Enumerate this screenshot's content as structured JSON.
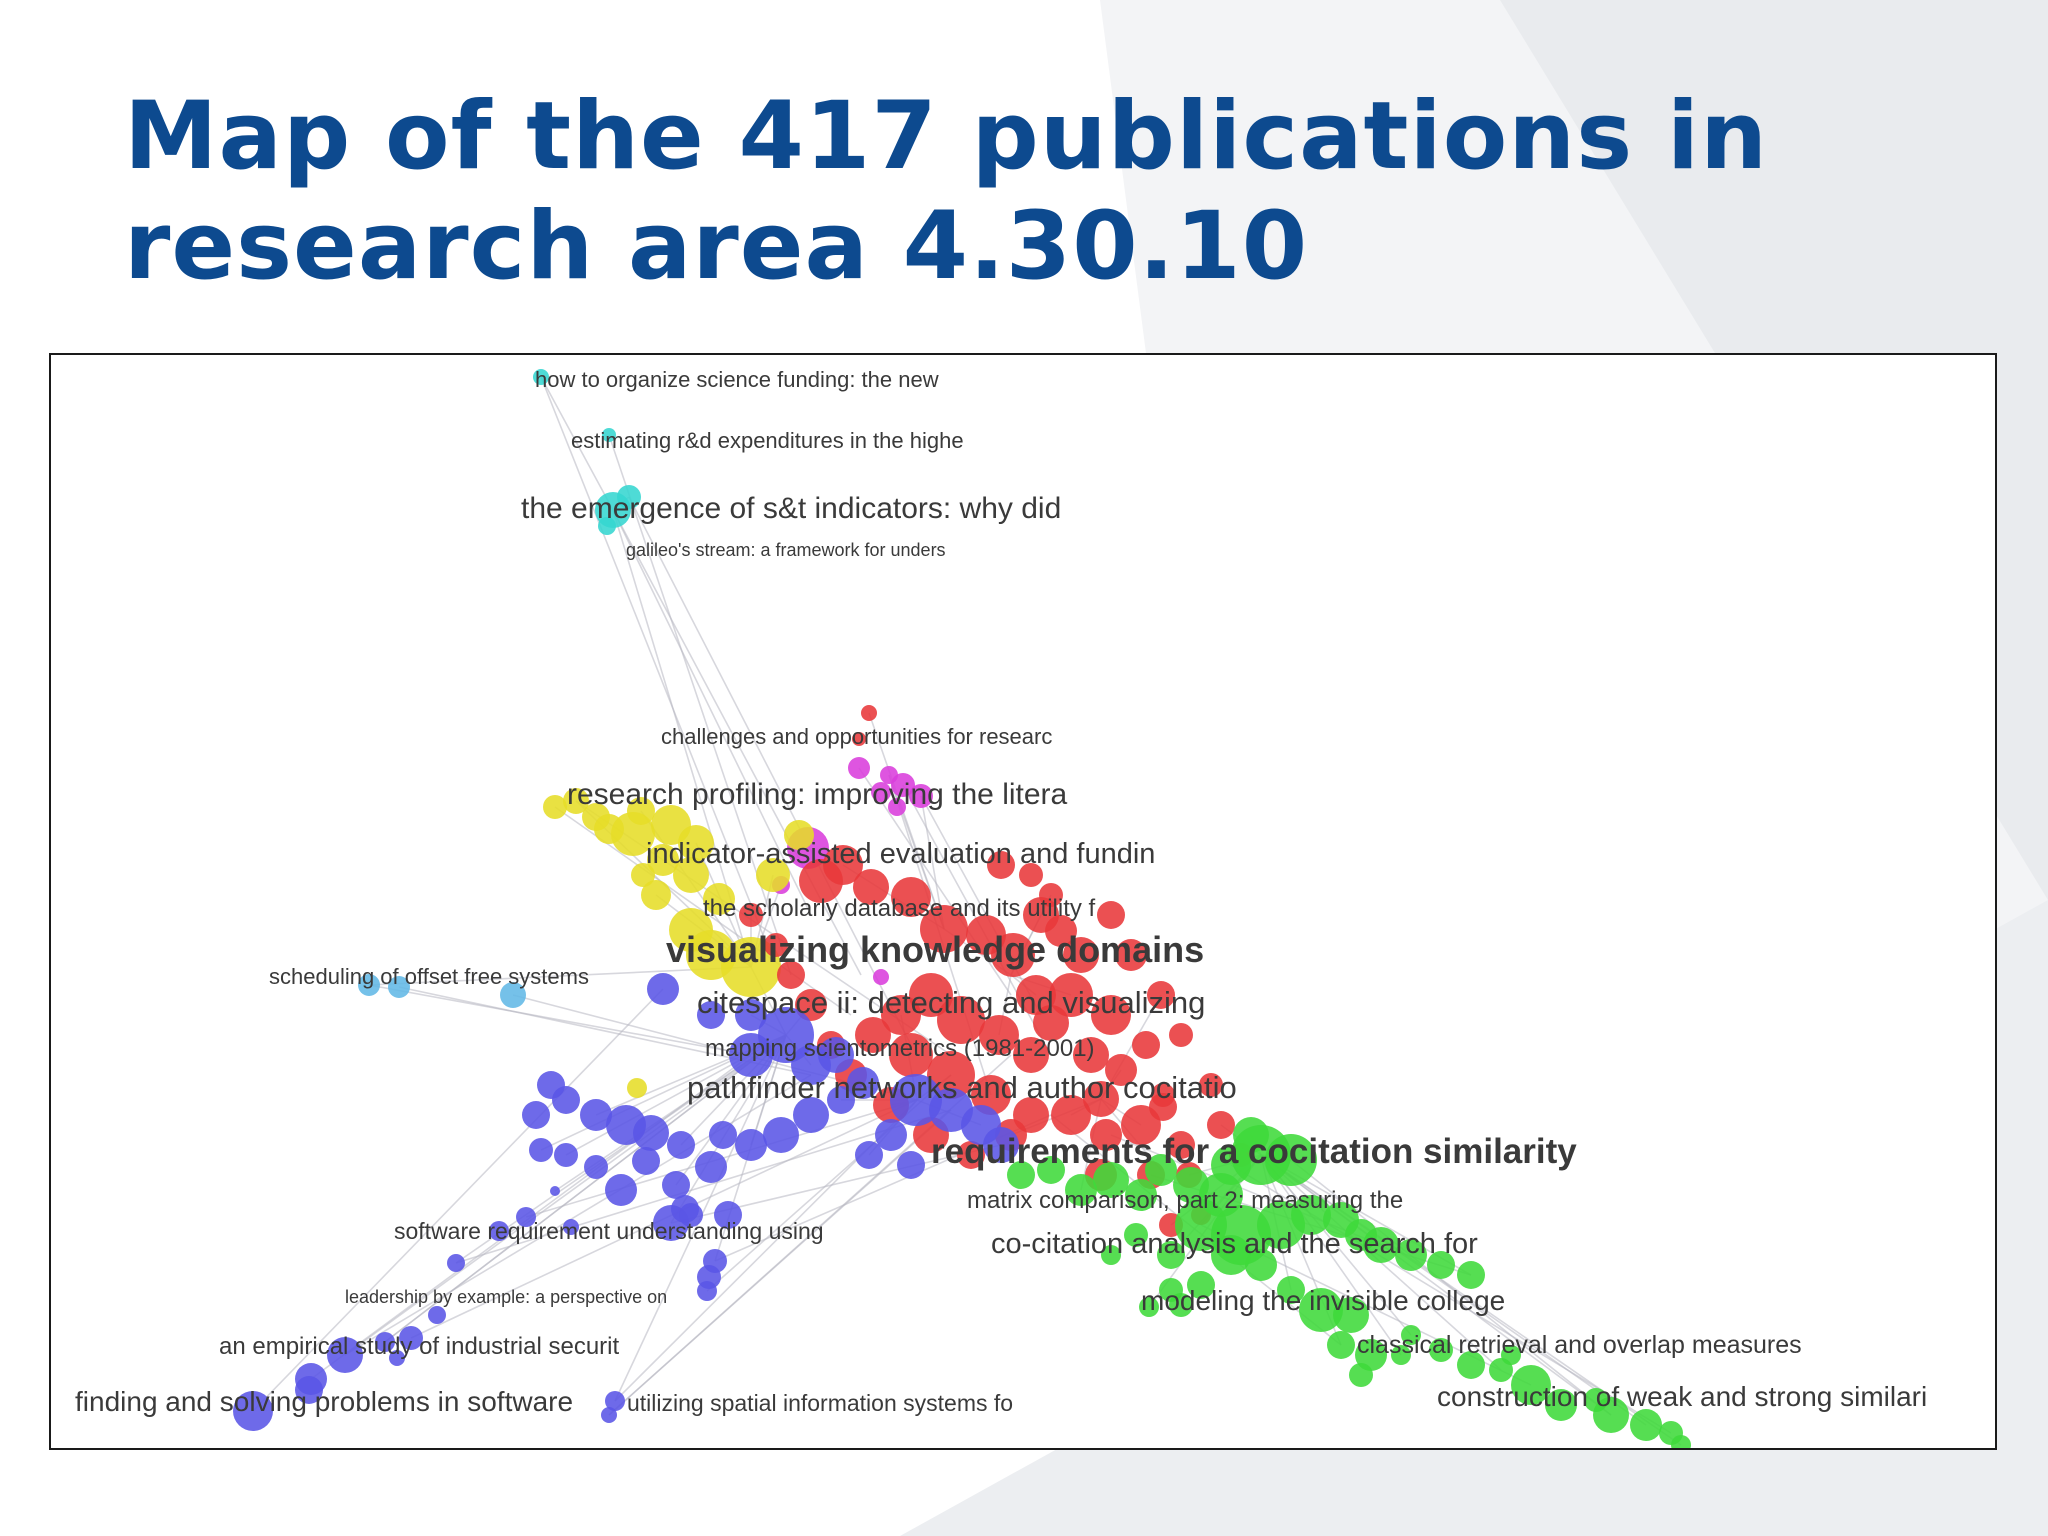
{
  "slide": {
    "title_line1": "Map of the 417 publications in",
    "title_line2": "research area 4.30.10"
  },
  "colors": {
    "title": "#0d4a8f",
    "red": "#e8383a",
    "yellow": "#e6dd28",
    "blue": "#5a55e6",
    "green": "#3fd93a",
    "magenta": "#d93ddc",
    "cyan": "#35d6d0",
    "lightblue": "#62b8e6"
  },
  "labels": [
    {
      "text": "how to organize science funding: the new",
      "size": "small"
    },
    {
      "text": "estimating r&d expenditures in the highe",
      "size": "small"
    },
    {
      "text": "the emergence of s&t indicators: why did",
      "size": "medium"
    },
    {
      "text": "galileo's stream: a framework for unders",
      "size": "tiny"
    },
    {
      "text": "challenges and opportunities for researc",
      "size": "small"
    },
    {
      "text": "research profiling: improving the litera",
      "size": "medium"
    },
    {
      "text": "indicator-assisted evaluation and fundin",
      "size": "medium"
    },
    {
      "text": "the scholarly database and its utility f",
      "size": "small"
    },
    {
      "text": "visualizing knowledge domains",
      "size": "large"
    },
    {
      "text": "scheduling of offset free systems",
      "size": "small"
    },
    {
      "text": "citespace ii: detecting and visualizing",
      "size": "medium"
    },
    {
      "text": "mapping scientometrics (1981-2001)",
      "size": "small"
    },
    {
      "text": "pathfinder networks and author cocitatio",
      "size": "medium"
    },
    {
      "text": "requirements for a cocitation similarity",
      "size": "large"
    },
    {
      "text": "matrix comparison, part 2: measuring the",
      "size": "small"
    },
    {
      "text": "software requirement understanding using",
      "size": "small"
    },
    {
      "text": "co-citation analysis and the search for",
      "size": "medium"
    },
    {
      "text": "leadership by example: a perspective on",
      "size": "tiny"
    },
    {
      "text": "modeling the invisible college",
      "size": "medium"
    },
    {
      "text": "an empirical study of industrial securit",
      "size": "small"
    },
    {
      "text": "classical retrieval and overlap measures",
      "size": "small"
    },
    {
      "text": "finding and solving problems in software",
      "size": "medium"
    },
    {
      "text": "utilizing spatial information systems fo",
      "size": "small"
    },
    {
      "text": "construction of weak and strong similari",
      "size": "medium"
    }
  ]
}
